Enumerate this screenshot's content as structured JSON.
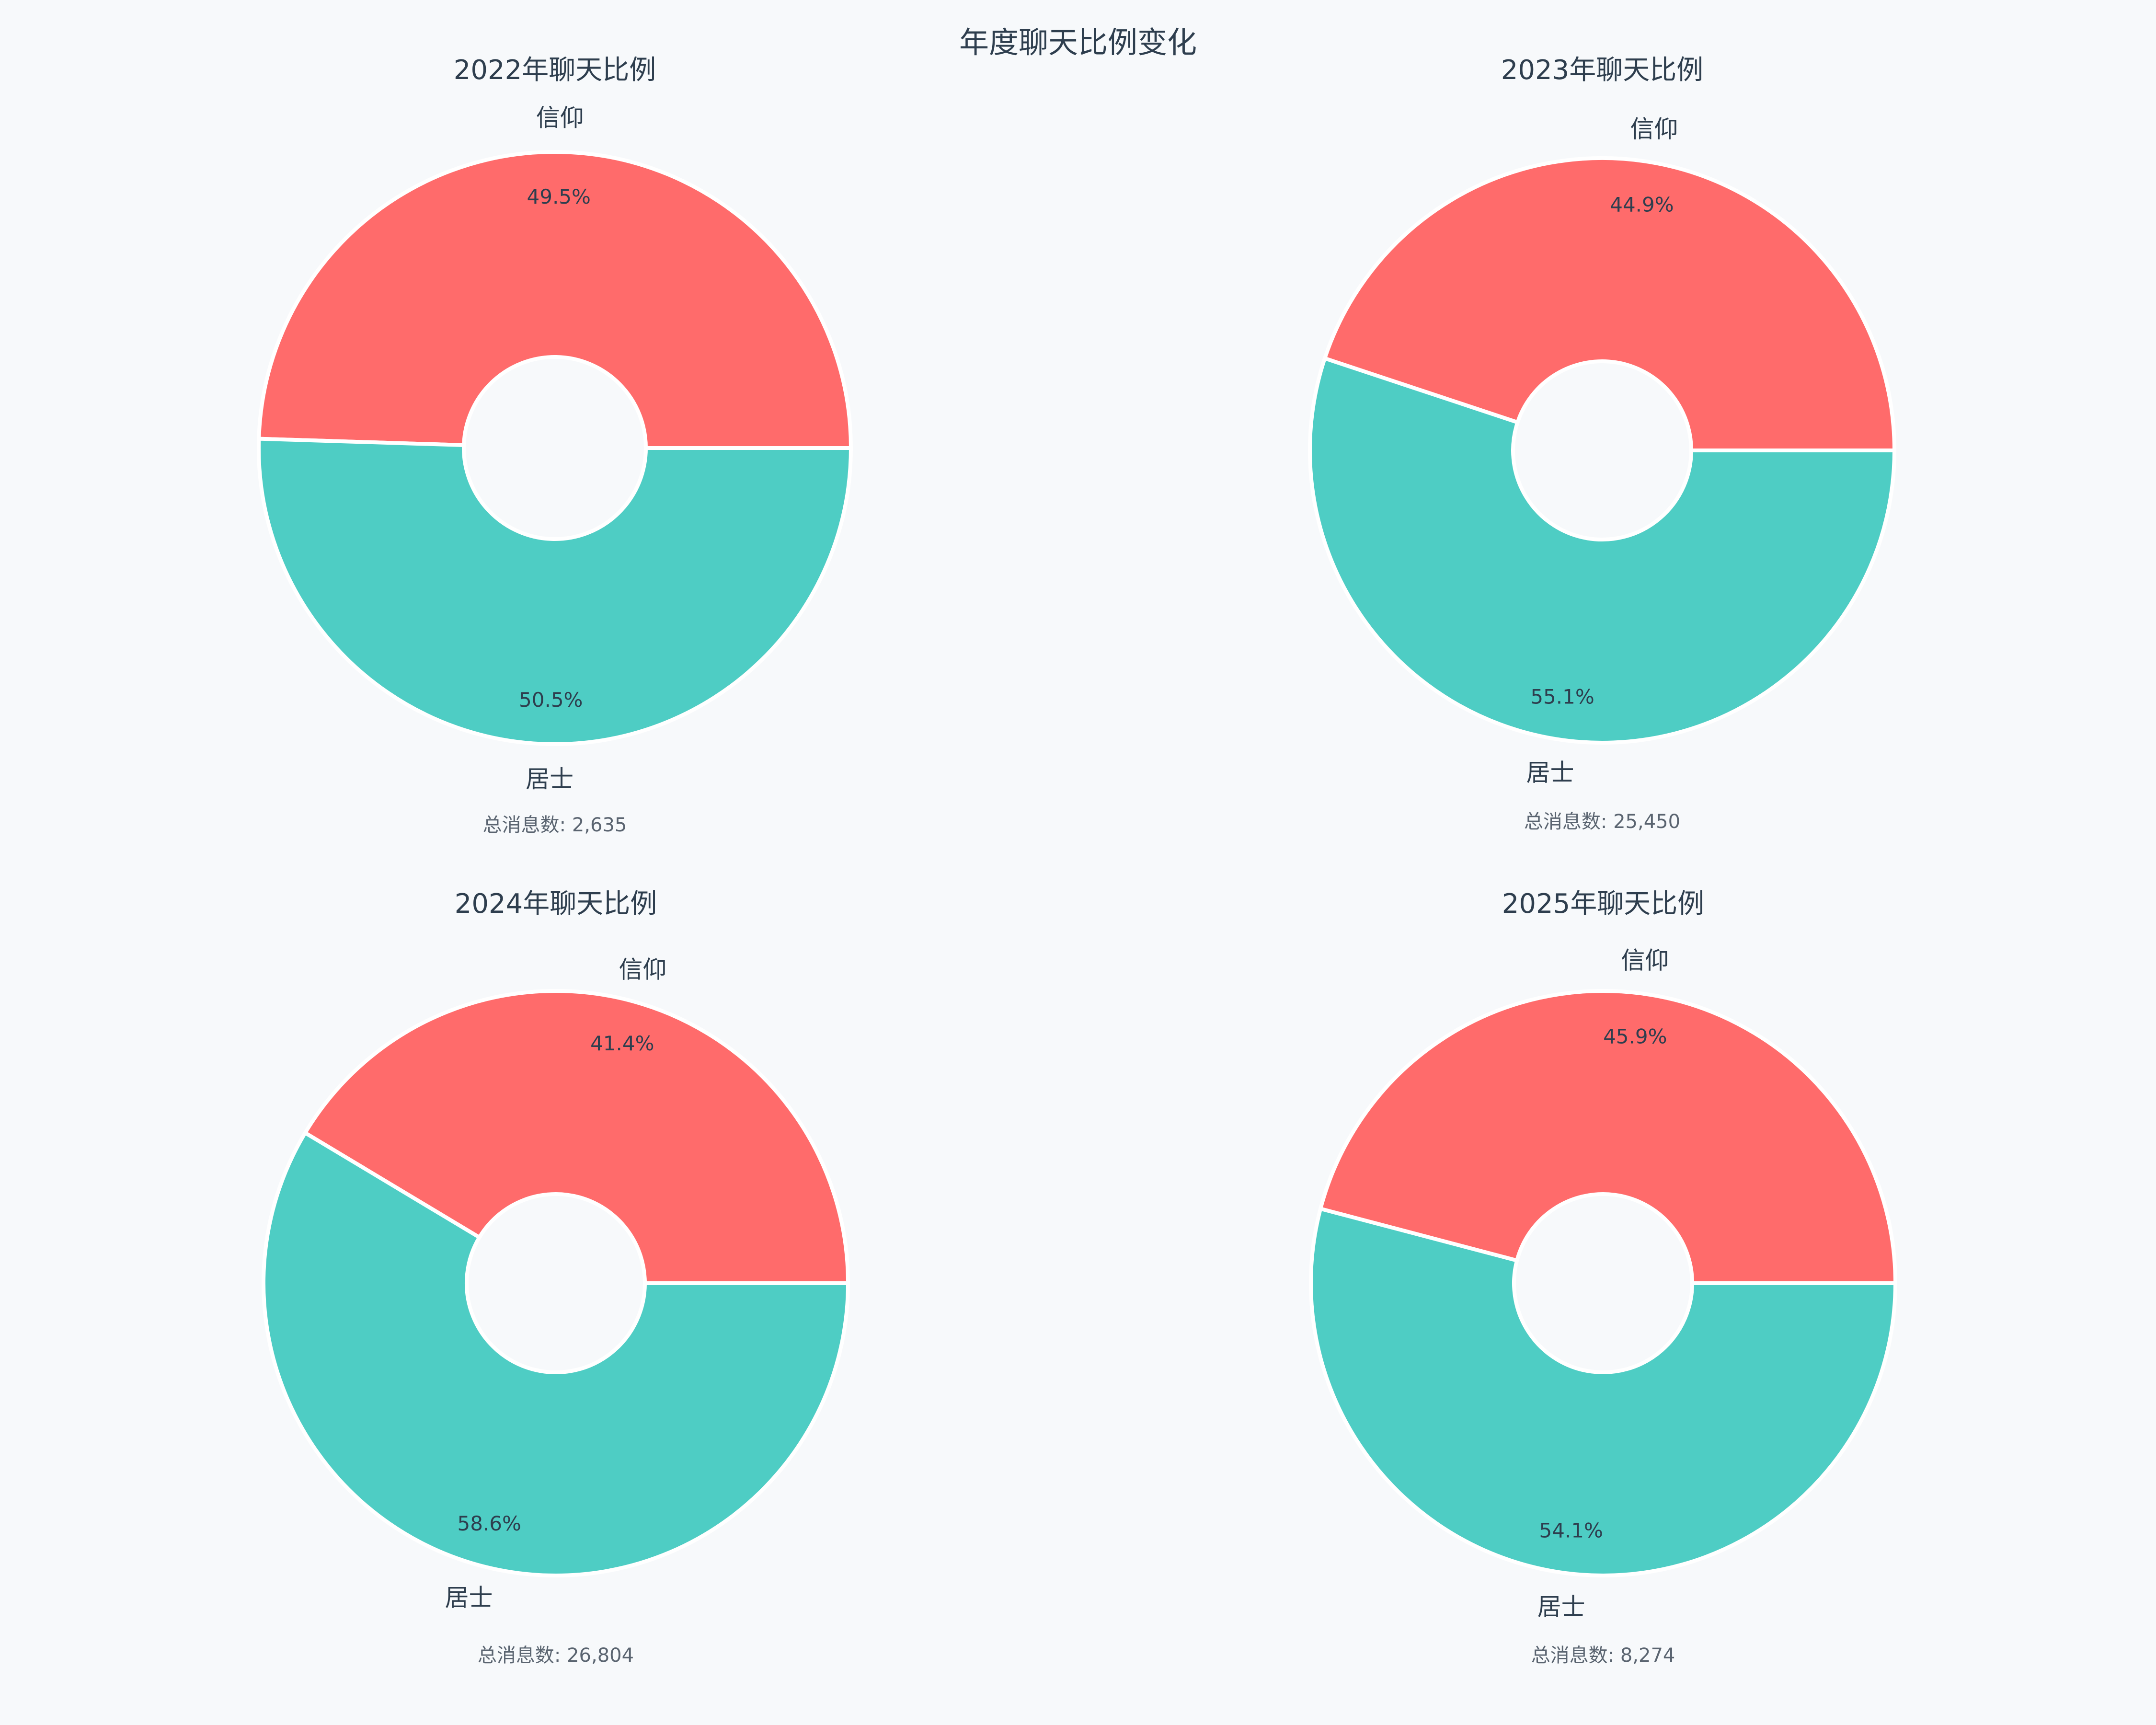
{
  "title": "年度聊天比例变化",
  "colors": {
    "background": "#f7f9fb",
    "text": "#2e3e4e",
    "subtext": "#5a6470",
    "separator": "#ffffff"
  },
  "chart_data": [
    {
      "type": "pie",
      "donut": true,
      "title": "2022年聊天比例",
      "categories": [
        "信仰",
        "居士"
      ],
      "values": [
        49.5,
        50.5
      ],
      "value_labels": [
        "49.5%",
        "50.5%"
      ],
      "colors": [
        "#ff6b6b",
        "#4ecdc4"
      ],
      "total_label": "总消息数: 2,635"
    },
    {
      "type": "pie",
      "donut": true,
      "title": "2023年聊天比例",
      "categories": [
        "信仰",
        "居士"
      ],
      "values": [
        44.9,
        55.1
      ],
      "value_labels": [
        "44.9%",
        "55.1%"
      ],
      "colors": [
        "#ff6b6b",
        "#4ecdc4"
      ],
      "total_label": "总消息数: 25,450"
    },
    {
      "type": "pie",
      "donut": true,
      "title": "2024年聊天比例",
      "categories": [
        "信仰",
        "居士"
      ],
      "values": [
        41.4,
        58.6
      ],
      "value_labels": [
        "41.4%",
        "58.6%"
      ],
      "colors": [
        "#ff6b6b",
        "#4ecdc4"
      ],
      "total_label": "总消息数: 26,804"
    },
    {
      "type": "pie",
      "donut": true,
      "title": "2025年聊天比例",
      "categories": [
        "信仰",
        "居士"
      ],
      "values": [
        45.9,
        54.1
      ],
      "value_labels": [
        "45.9%",
        "54.1%"
      ],
      "colors": [
        "#ff6b6b",
        "#4ecdc4"
      ],
      "total_label": "总消息数: 8,274"
    }
  ]
}
